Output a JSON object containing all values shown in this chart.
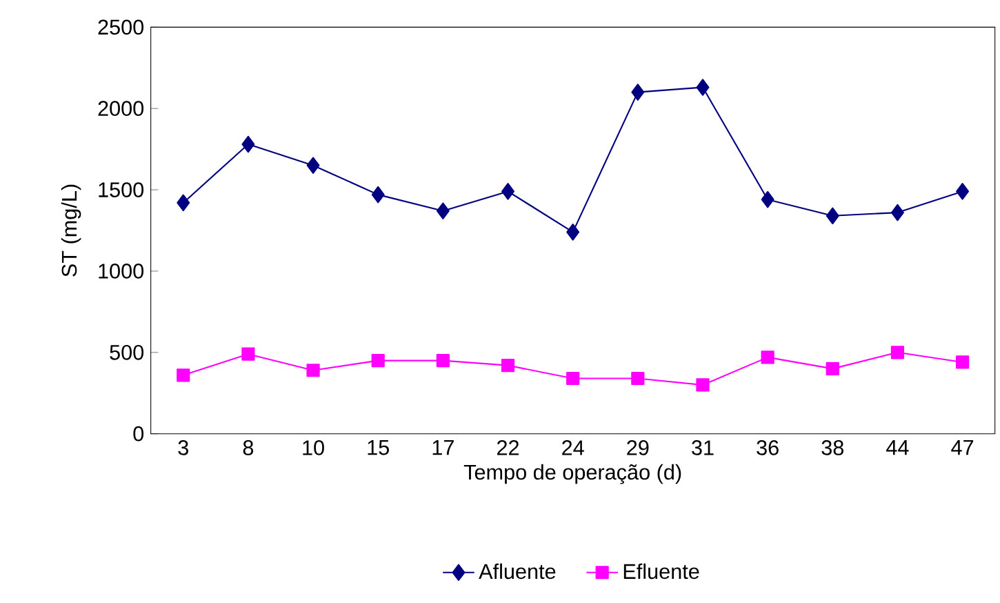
{
  "chart_data": {
    "type": "line",
    "xlabel": "Tempo de operação (d)",
    "ylabel": "ST (mg/L)",
    "categories": [
      "3",
      "8",
      "10",
      "15",
      "17",
      "22",
      "24",
      "29",
      "31",
      "36",
      "38",
      "44",
      "47"
    ],
    "series": [
      {
        "name": "Afluente",
        "color": "#000080",
        "marker": "diamond",
        "values": [
          1420,
          1780,
          1650,
          1470,
          1370,
          1490,
          1240,
          2100,
          2130,
          1440,
          1340,
          1360,
          1490
        ]
      },
      {
        "name": "Efluente",
        "color": "#ff00ff",
        "marker": "square",
        "values": [
          360,
          490,
          390,
          450,
          450,
          420,
          340,
          340,
          300,
          470,
          400,
          500,
          440
        ]
      }
    ],
    "ylim": [
      0,
      2500
    ],
    "yticks": [
      0,
      500,
      1000,
      1500,
      2000,
      2500
    ],
    "grid": false,
    "legend": "bottom"
  }
}
